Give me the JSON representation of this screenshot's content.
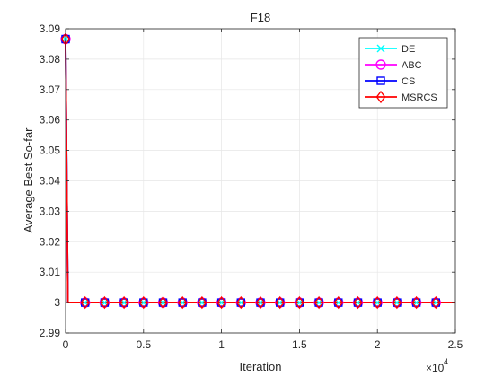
{
  "chart_data": {
    "type": "line",
    "title": "F18",
    "xlabel": "Iteration",
    "ylabel": "Average Best So-far",
    "x_exponent_label": "×10",
    "x_exponent": "4",
    "xlim": [
      0,
      25000
    ],
    "ylim": [
      2.99,
      3.09
    ],
    "xticks": [
      0,
      5000,
      10000,
      15000,
      20000,
      25000
    ],
    "xtick_labels": [
      "0",
      "0.5",
      "1",
      "1.5",
      "2",
      "2.5"
    ],
    "yticks": [
      2.99,
      3.0,
      3.01,
      3.02,
      3.03,
      3.04,
      3.05,
      3.06,
      3.07,
      3.08,
      3.09
    ],
    "ytick_labels": [
      "2.99",
      "3",
      "3.01",
      "3.02",
      "3.03",
      "3.04",
      "3.05",
      "3.06",
      "3.07",
      "3.08",
      "3.09"
    ],
    "grid": true,
    "legend_position": "top-right",
    "series": [
      {
        "name": "DE",
        "color": "#00ffff",
        "marker": "x",
        "x": [
          0,
          150,
          25000
        ],
        "y": [
          3.0866,
          3.0,
          3.0
        ],
        "marker_x": [
          0,
          1250,
          2500,
          3750,
          5000,
          6250,
          7500,
          8750,
          10000,
          11250,
          12500,
          13750,
          15000,
          16250,
          17500,
          18750,
          20000,
          21250,
          22500,
          23750
        ]
      },
      {
        "name": "ABC",
        "color": "#ff00ff",
        "marker": "o",
        "x": [
          0,
          150,
          25000
        ],
        "y": [
          3.0866,
          3.0,
          3.0
        ],
        "marker_x": [
          0,
          1250,
          2500,
          3750,
          5000,
          6250,
          7500,
          8750,
          10000,
          11250,
          12500,
          13750,
          15000,
          16250,
          17500,
          18750,
          20000,
          21250,
          22500,
          23750
        ]
      },
      {
        "name": "CS",
        "color": "#0000ff",
        "marker": "s",
        "x": [
          0,
          150,
          25000
        ],
        "y": [
          3.0866,
          3.0,
          3.0
        ],
        "marker_x": [
          0,
          1250,
          2500,
          3750,
          5000,
          6250,
          7500,
          8750,
          10000,
          11250,
          12500,
          13750,
          15000,
          16250,
          17500,
          18750,
          20000,
          21250,
          22500,
          23750
        ]
      },
      {
        "name": "MSRCS",
        "color": "#ff0000",
        "marker": "d",
        "x": [
          0,
          150,
          25000
        ],
        "y": [
          3.0866,
          3.0,
          3.0
        ],
        "marker_x": [
          0,
          1250,
          2500,
          3750,
          5000,
          6250,
          7500,
          8750,
          10000,
          11250,
          12500,
          13750,
          15000,
          16250,
          17500,
          18750,
          20000,
          21250,
          22500,
          23750
        ]
      }
    ]
  }
}
